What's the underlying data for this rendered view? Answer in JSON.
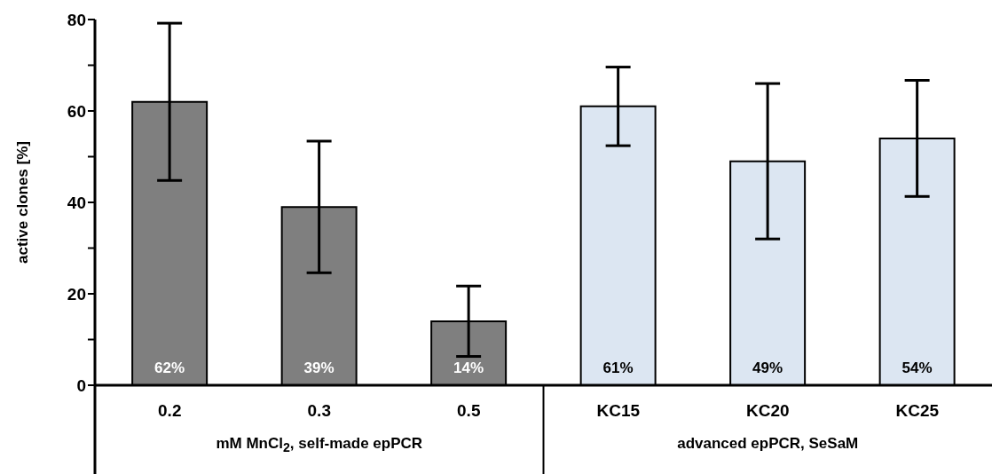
{
  "chart_data": {
    "type": "bar",
    "ylabel": "active clones [%]",
    "categories": [
      "0.2",
      "0.3",
      "0.5",
      "KC15",
      "KC20",
      "KC25"
    ],
    "values": [
      62,
      39,
      14,
      61,
      49,
      54
    ],
    "colors": [
      "#7f7f7f",
      "#7f7f7f",
      "#7f7f7f",
      "#dce6f2",
      "#dce6f2",
      "#dce6f2"
    ],
    "errors": [
      17.2,
      14.4,
      7.7,
      8.6,
      17,
      12.7
    ],
    "value_labels": [
      "62%",
      "39%",
      "14%",
      "61%",
      "49%",
      "54%"
    ],
    "ylim": [
      0,
      80
    ],
    "yticks": [
      0,
      {
        "value": 10,
        "label": null
      },
      20,
      {
        "value": 30,
        "label": null
      },
      40,
      {
        "value": 50,
        "label": null
      },
      60,
      {
        "value": 70,
        "label": null
      },
      80
    ],
    "grid": false,
    "annotations": [
      "mM MnCl$_{2}$, self-made epPCR",
      "advanced epPCR, SeSaM"
    ]
  }
}
